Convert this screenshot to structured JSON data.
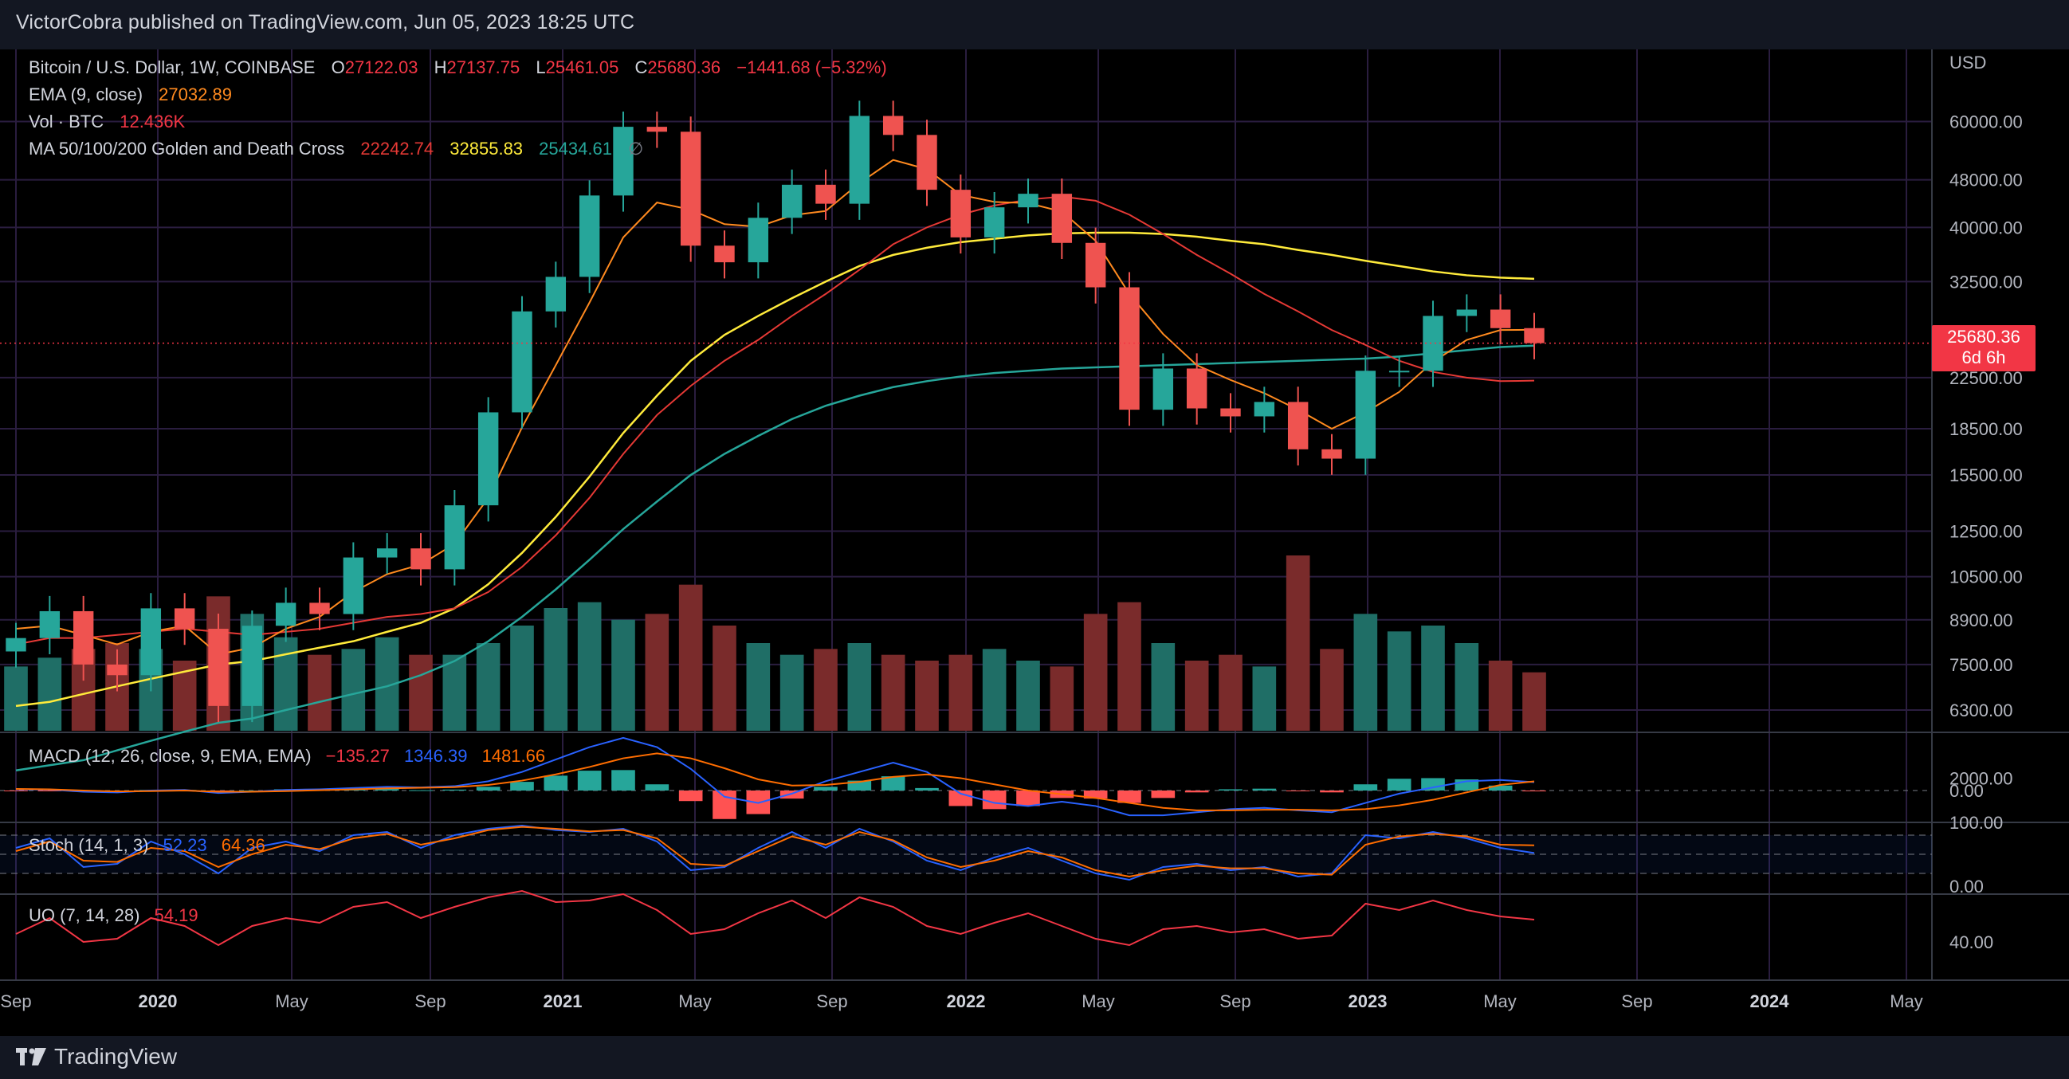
{
  "header": {
    "text": "VictorCobra published on TradingView.com, Jun 05, 2023 18:25 UTC"
  },
  "legend": {
    "symbol": "Bitcoin / U.S. Dollar, 1W, COINBASE",
    "o_label": "O",
    "o": "27122.03",
    "h_label": "H",
    "h": "27137.75",
    "l_label": "L",
    "l": "25461.05",
    "c_label": "C",
    "c": "25680.36",
    "change": "−1441.68 (−5.32%)",
    "ema_label": "EMA (9, close)",
    "ema_value": "27032.89",
    "vol_label": "Vol · BTC",
    "vol_value": "12.436K",
    "ma_label": "MA 50/100/200 Golden and Death Cross",
    "ma50": "22242.74",
    "ma100": "32855.83",
    "ma200": "25434.61",
    "ma_icon": "∅"
  },
  "indicators": {
    "macd_label": "MACD (12, 26, close, 9, EMA, EMA)",
    "macd_hist": "−135.27",
    "macd_line": "1346.39",
    "macd_signal": "1481.66",
    "stoch_label": "Stoch (14, 1, 3)",
    "stoch_k": "52.23",
    "stoch_d": "64.36",
    "uo_label": "UO (7, 14, 28)",
    "uo_value": "54.19"
  },
  "price_axis": {
    "unit": "USD",
    "ticks": [
      "60000.00",
      "48000.00",
      "40000.00",
      "32500.00",
      "25680.36",
      "22500.00",
      "18500.00",
      "15500.00",
      "12500.00",
      "10500.00",
      "8900.00",
      "7500.00",
      "6300.00"
    ],
    "last_price": "25680.36",
    "countdown": "6d 6h"
  },
  "macd_axis": {
    "ticks": [
      "2000.00",
      "0.00"
    ]
  },
  "stoch_axis": {
    "ticks": [
      "100.00",
      "0.00"
    ]
  },
  "uo_axis": {
    "ticks": [
      "40.00"
    ]
  },
  "time_axis": {
    "labels": [
      "Sep",
      "2020",
      "May",
      "Sep",
      "2021",
      "May",
      "Sep",
      "2022",
      "May",
      "Sep",
      "2023",
      "May",
      "Sep",
      "2024",
      "May"
    ]
  },
  "footer": {
    "brand": "TradingView"
  },
  "colors": {
    "up": "#26a69a",
    "down": "#ef5350",
    "ema": "#ff8a1f",
    "ma50": "#e53935",
    "ma100": "#ffeb3b",
    "ma200": "#26a69a",
    "macd": "#2962ff",
    "signal": "#ff6d00",
    "uo": "#f23645"
  },
  "chart_data": {
    "type": "candlestick",
    "title": "Bitcoin / U.S. Dollar, 1W, COINBASE",
    "scale": "log",
    "ylim": [
      6000,
      70000
    ],
    "x": [
      "2019-09",
      "2019-10",
      "2019-11",
      "2019-12",
      "2020-01",
      "2020-02",
      "2020-03",
      "2020-04",
      "2020-05",
      "2020-06",
      "2020-07",
      "2020-08",
      "2020-09",
      "2020-10",
      "2020-11",
      "2020-12",
      "2021-01",
      "2021-02",
      "2021-03",
      "2021-04",
      "2021-05",
      "2021-06",
      "2021-07",
      "2021-08",
      "2021-09",
      "2021-10",
      "2021-11",
      "2021-12",
      "2022-01",
      "2022-02",
      "2022-03",
      "2022-04",
      "2022-05",
      "2022-06",
      "2022-07",
      "2022-08",
      "2022-09",
      "2022-10",
      "2022-11",
      "2022-12",
      "2023-01",
      "2023-02",
      "2023-03",
      "2023-04",
      "2023-05",
      "2023-06"
    ],
    "close": [
      8300,
      9200,
      7500,
      7200,
      9300,
      8600,
      6400,
      8700,
      9500,
      9100,
      11300,
      11700,
      10800,
      13800,
      19700,
      29000,
      33100,
      45200,
      58800,
      57700,
      37300,
      35000,
      41500,
      47100,
      43800,
      61300,
      57000,
      46200,
      38500,
      43200,
      45500,
      37700,
      31800,
      19900,
      23300,
      20000,
      19400,
      20500,
      17100,
      16500,
      23100,
      23100,
      28500,
      29200,
      27200,
      25680
    ],
    "ema9": [
      8600,
      8700,
      8400,
      8100,
      8500,
      8700,
      7800,
      8000,
      8600,
      9000,
      9900,
      10600,
      11000,
      11900,
      14200,
      18600,
      23600,
      30000,
      38500,
      44000,
      42800,
      40500,
      40100,
      41900,
      42600,
      47400,
      51800,
      50000,
      45300,
      44100,
      43900,
      42500,
      38000,
      31000,
      26600,
      23600,
      22300,
      21200,
      19900,
      18500,
      19700,
      21300,
      23900,
      26000,
      27000,
      27032
    ],
    "ma50": [
      8100,
      8300,
      8300,
      8400,
      8500,
      8600,
      8500,
      8400,
      8500,
      8600,
      8800,
      9000,
      9100,
      9300,
      9900,
      10900,
      12300,
      14200,
      16800,
      19500,
      21800,
      24000,
      26000,
      28500,
      31000,
      34000,
      37500,
      40000,
      42000,
      43500,
      44500,
      45000,
      44300,
      42000,
      39000,
      36000,
      33500,
      31000,
      29000,
      27000,
      25500,
      24000,
      23000,
      22500,
      22200,
      22242
    ],
    "ma100": [
      6400,
      6500,
      6700,
      6900,
      7100,
      7300,
      7500,
      7600,
      7800,
      8000,
      8200,
      8500,
      8800,
      9300,
      10200,
      11500,
      13200,
      15400,
      18200,
      21000,
      24000,
      26500,
      28500,
      30500,
      32500,
      34500,
      36000,
      37000,
      37800,
      38300,
      38800,
      39100,
      39200,
      39200,
      39000,
      38600,
      38000,
      37500,
      36700,
      36000,
      35200,
      34500,
      33800,
      33300,
      33000,
      32855
    ],
    "ma200": [
      5000,
      5100,
      5200,
      5400,
      5600,
      5800,
      6000,
      6100,
      6300,
      6500,
      6700,
      6900,
      7200,
      7600,
      8200,
      9000,
      10000,
      11200,
      12600,
      14000,
      15500,
      16800,
      18000,
      19200,
      20200,
      21000,
      21700,
      22200,
      22600,
      22900,
      23100,
      23300,
      23400,
      23500,
      23600,
      23700,
      23800,
      23900,
      24000,
      24100,
      24200,
      24400,
      24700,
      25000,
      25300,
      25434
    ],
    "volume": [
      22,
      25,
      28,
      30,
      28,
      24,
      46,
      40,
      32,
      26,
      28,
      32,
      26,
      26,
      30,
      36,
      42,
      44,
      38,
      40,
      50,
      36,
      30,
      26,
      28,
      30,
      26,
      24,
      26,
      28,
      24,
      22,
      40,
      44,
      30,
      24,
      26,
      22,
      60,
      28,
      40,
      34,
      36,
      30,
      24,
      20
    ],
    "macd": [
      200,
      150,
      -200,
      -300,
      0,
      100,
      -400,
      -200,
      100,
      200,
      400,
      600,
      500,
      700,
      1500,
      3000,
      5000,
      7000,
      8500,
      7000,
      3500,
      -1000,
      -2000,
      -500,
      1500,
      3000,
      4500,
      3000,
      -500,
      -2000,
      -2500,
      -1800,
      -2500,
      -4000,
      -4000,
      -3500,
      -3000,
      -2800,
      -3200,
      -3500,
      -2000,
      -500,
      500,
      1500,
      1700,
      1346
    ],
    "signal": [
      250,
      200,
      0,
      -150,
      -100,
      0,
      -200,
      -200,
      -100,
      50,
      200,
      350,
      450,
      550,
      900,
      1600,
      2600,
      3800,
      5200,
      6000,
      5200,
      3600,
      1800,
      800,
      900,
      1400,
      2200,
      2600,
      2000,
      1000,
      0,
      -600,
      -1200,
      -2000,
      -2800,
      -3200,
      -3200,
      -3100,
      -3100,
      -3200,
      -3000,
      -2400,
      -1500,
      -300,
      900,
      1481
    ],
    "stoch_k": [
      60,
      75,
      30,
      35,
      70,
      50,
      20,
      60,
      70,
      55,
      80,
      85,
      60,
      80,
      90,
      95,
      88,
      85,
      90,
      70,
      25,
      30,
      60,
      85,
      60,
      90,
      70,
      40,
      25,
      45,
      60,
      40,
      20,
      10,
      30,
      35,
      25,
      30,
      15,
      20,
      80,
      75,
      85,
      75,
      60,
      52
    ],
    "stoch_d": [
      55,
      70,
      40,
      38,
      60,
      55,
      30,
      50,
      65,
      58,
      75,
      82,
      65,
      75,
      88,
      93,
      90,
      86,
      88,
      75,
      35,
      32,
      55,
      78,
      65,
      85,
      72,
      45,
      30,
      40,
      55,
      45,
      25,
      15,
      25,
      32,
      28,
      28,
      20,
      18,
      65,
      78,
      82,
      78,
      65,
      64
    ],
    "uo": [
      45,
      55,
      40,
      42,
      55,
      50,
      38,
      50,
      55,
      52,
      62,
      65,
      55,
      62,
      68,
      72,
      65,
      66,
      70,
      60,
      45,
      48,
      58,
      66,
      55,
      68,
      62,
      50,
      45,
      52,
      58,
      50,
      42,
      38,
      48,
      50,
      46,
      48,
      42,
      44,
      64,
      60,
      66,
      60,
      56,
      54
    ]
  }
}
